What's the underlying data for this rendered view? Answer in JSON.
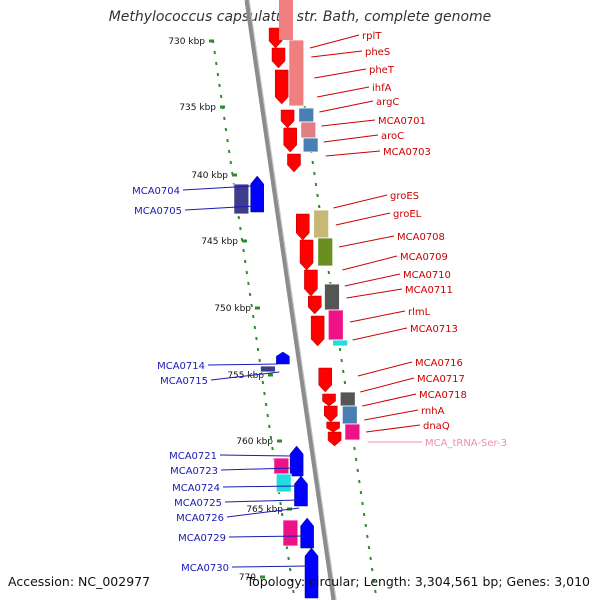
{
  "title": "Methylococcus capsulatus str. Bath, complete genome",
  "footer": {
    "accession": "Accession: NC_002977",
    "summary": "Topology: circular; Length: 3,304,561 bp; Genes: 3,010"
  },
  "scale_marks": [
    "730 kbp",
    "735 kbp",
    "740 kbp",
    "745 kbp",
    "750 kbp",
    "755 kbp",
    "760 kbp",
    "765 kbp",
    "770"
  ],
  "colors": {
    "forward_gene": "#ff0000",
    "reverse_gene": "#0000ff",
    "forward_label": "#cc0000",
    "reverse_label": "#1a1ab3",
    "trna_label": "#f08cb4",
    "backbone": "#8c8c8c",
    "ticks": "#2e8b2e"
  },
  "forward_labels": [
    "rplT",
    "pheS",
    "pheT",
    "ihfA",
    "argC",
    "MCA0701",
    "aroC",
    "MCA0703",
    "groES",
    "groEL",
    "MCA0708",
    "MCA0709",
    "MCA0710",
    "MCA0711",
    "rlmL",
    "MCA0713",
    "MCA0716",
    "MCA0717",
    "MCA0718",
    "rnhA",
    "dnaQ",
    "MCA_tRNA-Ser-3"
  ],
  "reverse_labels": [
    "MCA0704",
    "MCA0705",
    "MCA0714",
    "MCA0715",
    "MCA0721",
    "MCA0723",
    "MCA0724",
    "MCA0725",
    "MCA0726",
    "MCA0729",
    "MCA0730"
  ]
}
